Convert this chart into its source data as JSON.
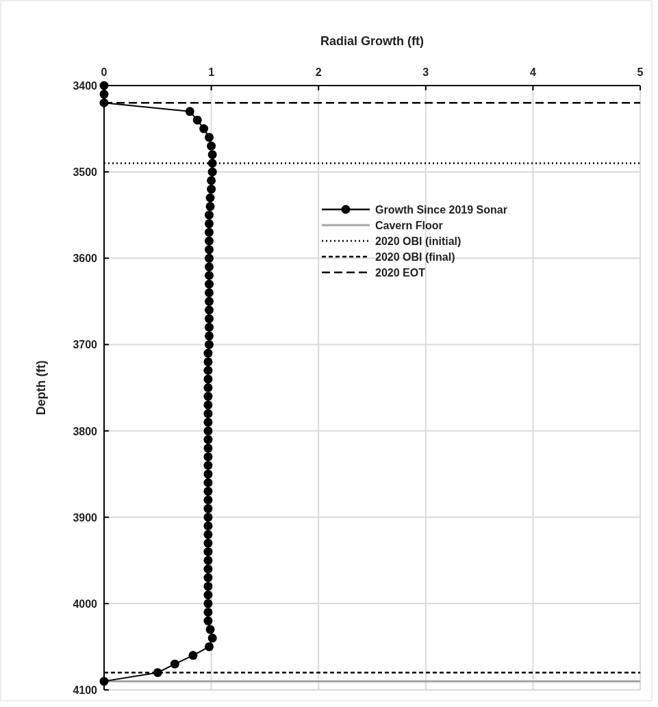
{
  "chart_data": {
    "type": "line",
    "orientation": "horizontal",
    "xlabel": "Radial Growth (ft)",
    "ylabel": "Depth (ft)",
    "xlim": [
      0,
      5
    ],
    "xticks": [
      0,
      1,
      2,
      3,
      4,
      5
    ],
    "ylim": [
      4100,
      3400
    ],
    "yticks": [
      3400,
      3500,
      3600,
      3700,
      3800,
      3900,
      4000,
      4100
    ],
    "grid": true,
    "legend": "right",
    "marker": "circle",
    "line_style": "solid",
    "x": [
      3400,
      3410,
      3420,
      3430,
      3440,
      3450,
      3460,
      3470,
      3480,
      3490,
      3500,
      3510,
      3520,
      3530,
      3540,
      3550,
      3560,
      3570,
      3580,
      3590,
      3600,
      3610,
      3620,
      3630,
      3640,
      3650,
      3660,
      3670,
      3680,
      3690,
      3700,
      3710,
      3720,
      3730,
      3740,
      3750,
      3760,
      3770,
      3780,
      3790,
      3800,
      3810,
      3820,
      3830,
      3840,
      3850,
      3860,
      3870,
      3880,
      3890,
      3900,
      3910,
      3920,
      3930,
      3940,
      3950,
      3960,
      3970,
      3980,
      3990,
      4000,
      4010,
      4020,
      4030,
      4040,
      4050,
      4060,
      4070,
      4080,
      4090
    ],
    "series": [
      {
        "name": "Growth Since 2019 Sonar",
        "color": "#000000",
        "values": [
          0,
          0,
          0,
          0.8,
          0.87,
          0.93,
          0.98,
          1.0,
          1.01,
          1.01,
          1.01,
          1.0,
          1.0,
          0.99,
          0.99,
          0.98,
          0.98,
          0.98,
          0.98,
          0.98,
          0.98,
          0.98,
          0.98,
          0.98,
          0.98,
          0.98,
          0.98,
          0.98,
          0.98,
          0.98,
          0.98,
          0.97,
          0.97,
          0.97,
          0.97,
          0.97,
          0.97,
          0.97,
          0.97,
          0.97,
          0.97,
          0.97,
          0.97,
          0.97,
          0.97,
          0.97,
          0.97,
          0.97,
          0.97,
          0.97,
          0.97,
          0.97,
          0.97,
          0.97,
          0.97,
          0.97,
          0.97,
          0.97,
          0.97,
          0.97,
          0.97,
          0.97,
          0.97,
          0.99,
          1.01,
          0.98,
          0.83,
          0.66,
          0.5,
          0
        ]
      }
    ],
    "ref_lines": [
      {
        "axis": "y",
        "value": 4090,
        "label": "Cavern Floor",
        "color": "#a6a6a6",
        "line_style": "solid"
      },
      {
        "axis": "y",
        "value": 3490,
        "label": "2020 OBI (initial)",
        "color": "#000000",
        "line_style": "dotted"
      },
      {
        "axis": "y",
        "value": 4080,
        "label": "2020 OBI (final)",
        "color": "#000000",
        "line_style": "dashed"
      },
      {
        "axis": "y",
        "value": 3420,
        "label": "2020 EOT",
        "color": "#000000",
        "line_style": "longdash"
      }
    ]
  }
}
